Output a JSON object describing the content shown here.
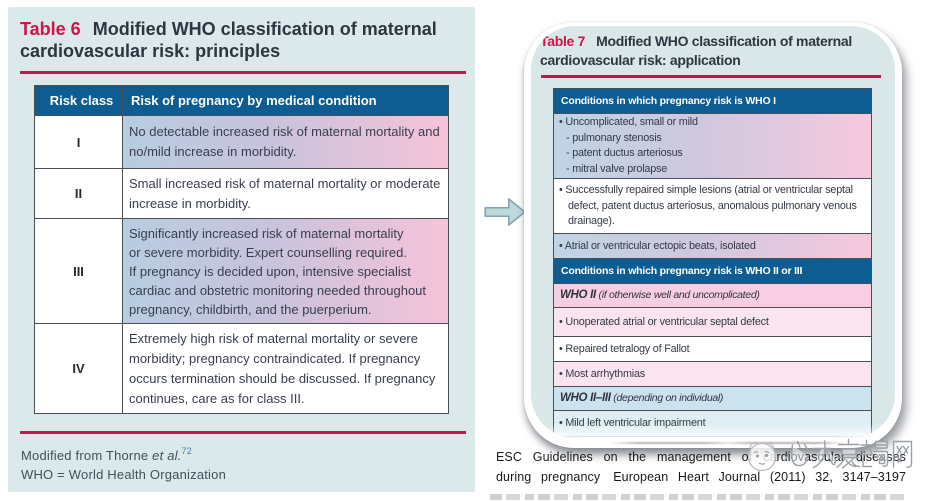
{
  "accent_colors": {
    "red": "#d01348",
    "header_blue": "#0d5c92",
    "panel_cyan": "#dbe9ea",
    "gradient_blue": "#b7cde1",
    "gradient_pink": "#f6c3d9"
  },
  "table6": {
    "label": "Table 6",
    "title_line1": "Modified WHO classification of maternal",
    "title_line2": "cardiovascular risk: principles",
    "columns": [
      "Risk class",
      "Risk of pregnancy by medical condition"
    ],
    "rows": [
      {
        "numeral": "I",
        "bg": "gradient",
        "lines": [
          "No detectable increased risk of maternal mortality and",
          "no/mild increase in morbidity."
        ]
      },
      {
        "numeral": "II",
        "bg": "white",
        "pad": "mid",
        "lines": [
          "Small increased risk of maternal mortality or moderate",
          "increase in morbidity."
        ]
      },
      {
        "numeral": "III",
        "bg": "gradient",
        "tight": true,
        "lines": [
          "Significantly increased risk of maternal mortality",
          "or severe morbidity. Expert counselling required.",
          "If pregnancy is decided upon, intensive specialist",
          "cardiac and obstetric monitoring needed throughout",
          "pregnancy, childbirth, and the puerperium."
        ]
      },
      {
        "numeral": "IV",
        "bg": "white",
        "pad": "mid4",
        "lines": [
          "Extremely high risk of maternal mortality or severe",
          "morbidity; pregnancy contraindicated. If pregnancy",
          "occurs termination should be discussed. If pregnancy",
          "continues, care as for class III."
        ]
      }
    ],
    "footnote1_pre": "Modified from Thorne ",
    "footnote1_italic": "et al.",
    "footnote1_sup": "72",
    "footnote2": "WHO = World Health Organization"
  },
  "table7": {
    "label": "Table 7",
    "title_line1": "Modified WHO classification of maternal",
    "title_line2": "cardiovascular risk: application",
    "rows": [
      {
        "kind": "header",
        "text": "Conditions in which pregnancy risk is WHO I"
      },
      {
        "kind": "item",
        "bg": "gradient2",
        "pad": "compact",
        "lines": [
          "• Uncomplicated, small or mild",
          "- pulmonary stenosis",
          "- patent ductus arteriosus",
          "- mitral valve prolapse"
        ]
      },
      {
        "kind": "item",
        "bg": "white",
        "pad": "semi",
        "lines": [
          "• Successfully repaired simple lesions (atrial or ventricular septal",
          "defect, patent ductus arteriosus, anomalous pulmonary venous",
          "drainage)."
        ]
      },
      {
        "kind": "item",
        "bg": "gradient2",
        "lines": [
          "• Atrial or ventricular ectopic beats, isolated"
        ]
      },
      {
        "kind": "header",
        "text": "Conditions in which pregnancy risk is WHO II or III"
      },
      {
        "kind": "who",
        "bg": "pink",
        "bold": "WHO II",
        "italic": "(if otherwise well and uncomplicated)"
      },
      {
        "kind": "item",
        "bg": "pinklight",
        "pad": "tall",
        "lines": [
          "• Unoperated atrial or ventricular septal defect"
        ]
      },
      {
        "kind": "item",
        "bg": "white",
        "lines": [
          "• Repaired tetralogy of Fallot"
        ]
      },
      {
        "kind": "item",
        "bg": "pinklight",
        "lines": [
          "• Most arrhythmias"
        ]
      },
      {
        "kind": "who",
        "bg": "blue",
        "bold": "WHO II–III",
        "italic": "(depending on individual)"
      },
      {
        "kind": "item",
        "bg": "bluelight",
        "pad": "last",
        "lines": [
          "• Mild left ventricular impairment"
        ]
      }
    ]
  },
  "caption": {
    "line1": "ESC Guidelines on the management of cardiovascular diseases",
    "line2_left": "during pregnancy",
    "line2_right": "European Heart Journal (2011) 32, 3147–3197"
  },
  "watermark": {
    "text": "心力衰竭网",
    "mascot": "heart-mascot-face"
  }
}
